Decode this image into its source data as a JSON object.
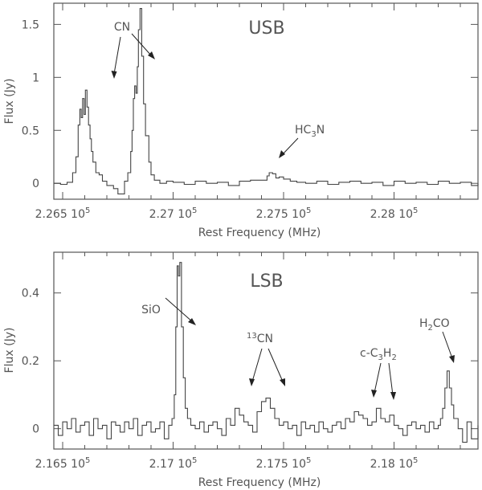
{
  "chart_data": [
    {
      "type": "line",
      "panel_label": "USB",
      "xlabel": "Rest Frequency (MHz)",
      "ylabel": "Flux (Jy)",
      "xlim": [
        226460,
        228380
      ],
      "ylim": [
        -0.15,
        1.7
      ],
      "xticks": [
        {
          "value": 226500,
          "mant": "2.265",
          "exp": "5"
        },
        {
          "value": 227000,
          "mant": "2.27",
          "exp": "5"
        },
        {
          "value": 227500,
          "mant": "2.275",
          "exp": "5"
        },
        {
          "value": 228000,
          "mant": "2.28",
          "exp": "5"
        }
      ],
      "yticks": [
        {
          "value": 0,
          "label": "0"
        },
        {
          "value": 0.5,
          "label": "0.5"
        },
        {
          "value": 1,
          "label": "1"
        },
        {
          "value": 1.5,
          "label": "1.5"
        }
      ],
      "series": [
        {
          "x": [
            226460,
            226490,
            226520,
            226545,
            226560,
            226570,
            226578,
            226584,
            226590,
            226597,
            226603,
            226610,
            226617,
            226624,
            226630,
            226637,
            226650,
            226665,
            226680,
            226700,
            226730,
            226750,
            226780,
            226795,
            226808,
            226814,
            226820,
            226826,
            226832,
            226838,
            226843,
            226850,
            226858,
            226866,
            226875,
            226890,
            226900,
            226915,
            226940,
            226970,
            227000,
            227050,
            227100,
            227150,
            227200,
            227250,
            227300,
            227350,
            227400,
            227425,
            227435,
            227450,
            227465,
            227480,
            227500,
            227530,
            227560,
            227600,
            227650,
            227700,
            227750,
            227800,
            227850,
            227900,
            227950,
            228000,
            228050,
            228100,
            228150,
            228200,
            228250,
            228300,
            228350,
            228380
          ],
          "y": [
            0.0,
            -0.01,
            0.01,
            0.1,
            0.25,
            0.55,
            0.7,
            0.62,
            0.8,
            0.65,
            0.88,
            0.72,
            0.55,
            0.42,
            0.3,
            0.2,
            0.1,
            0.08,
            0.02,
            -0.02,
            -0.05,
            -0.1,
            0.02,
            0.1,
            0.3,
            0.5,
            0.8,
            0.92,
            0.85,
            1.1,
            1.45,
            1.65,
            1.2,
            0.75,
            0.45,
            0.2,
            0.08,
            0.03,
            0.0,
            0.02,
            0.01,
            -0.01,
            0.02,
            0.0,
            0.01,
            -0.02,
            0.02,
            0.03,
            0.03,
            0.07,
            0.1,
            0.09,
            0.05,
            0.06,
            0.04,
            0.02,
            0.01,
            0.0,
            0.02,
            -0.01,
            0.01,
            0.02,
            0.0,
            0.01,
            -0.02,
            0.02,
            0.0,
            0.01,
            -0.01,
            0.02,
            0.0,
            0.01,
            -0.02,
            0.0
          ]
        }
      ],
      "annotations": [
        {
          "text": "CN"
        },
        {
          "text": "HC",
          "sub": "3",
          "rest": "N"
        }
      ]
    },
    {
      "type": "line",
      "panel_label": "LSB",
      "xlabel": "Rest Frequency (MHz)",
      "ylabel": "Flux (Jy)",
      "xlim": [
        216460,
        218380
      ],
      "ylim": [
        -0.06,
        0.52
      ],
      "xticks": [
        {
          "value": 216500,
          "mant": "2.165",
          "exp": "5"
        },
        {
          "value": 217000,
          "mant": "2.17",
          "exp": "5"
        },
        {
          "value": 217500,
          "mant": "2.175",
          "exp": "5"
        },
        {
          "value": 218000,
          "mant": "2.18",
          "exp": "5"
        }
      ],
      "yticks": [
        {
          "value": 0,
          "label": "0"
        },
        {
          "value": 0.2,
          "label": "0.2"
        },
        {
          "value": 0.4,
          "label": "0.4"
        }
      ],
      "series": [
        {
          "x": [
            216460,
            216480,
            216500,
            216520,
            216540,
            216560,
            216580,
            216600,
            216620,
            216640,
            216660,
            216680,
            216700,
            216720,
            216740,
            216760,
            216780,
            216800,
            216820,
            216840,
            216860,
            216880,
            216900,
            216920,
            216940,
            216960,
            216980,
            216995,
            217005,
            217012,
            217018,
            217024,
            217030,
            217038,
            217046,
            217055,
            217065,
            217080,
            217100,
            217120,
            217140,
            217160,
            217180,
            217200,
            217220,
            217240,
            217260,
            217280,
            217300,
            217320,
            217340,
            217360,
            217380,
            217400,
            217420,
            217440,
            217460,
            217480,
            217500,
            217520,
            217540,
            217560,
            217580,
            217600,
            217620,
            217640,
            217660,
            217680,
            217700,
            217720,
            217740,
            217760,
            217780,
            217800,
            217820,
            217840,
            217860,
            217880,
            217900,
            217920,
            217940,
            217960,
            217980,
            218000,
            218020,
            218040,
            218060,
            218080,
            218100,
            218120,
            218140,
            218160,
            218180,
            218200,
            218210,
            218220,
            218230,
            218240,
            218250,
            218260,
            218270,
            218290,
            218310,
            218330,
            218350,
            218380
          ],
          "y": [
            0.01,
            -0.02,
            0.02,
            0.0,
            0.03,
            -0.01,
            0.01,
            0.02,
            -0.02,
            0.03,
            0.0,
            0.01,
            -0.03,
            0.02,
            0.01,
            -0.01,
            0.02,
            0.0,
            0.03,
            -0.02,
            0.01,
            0.02,
            -0.01,
            0.0,
            0.02,
            -0.03,
            0.01,
            0.03,
            0.1,
            0.3,
            0.48,
            0.45,
            0.49,
            0.3,
            0.15,
            0.06,
            0.03,
            0.01,
            0.0,
            0.02,
            -0.01,
            0.01,
            0.02,
            0.0,
            -0.02,
            0.03,
            0.01,
            0.06,
            0.04,
            0.02,
            0.01,
            -0.01,
            0.05,
            0.08,
            0.09,
            0.06,
            0.03,
            0.01,
            0.02,
            0.0,
            0.01,
            -0.02,
            0.02,
            0.0,
            0.01,
            -0.01,
            0.02,
            0.0,
            -0.01,
            0.01,
            0.02,
            0.0,
            0.03,
            0.02,
            0.05,
            0.04,
            0.03,
            0.01,
            0.02,
            0.06,
            0.03,
            0.02,
            0.04,
            0.01,
            0.0,
            -0.02,
            0.01,
            0.02,
            0.0,
            0.01,
            -0.01,
            0.02,
            0.0,
            0.01,
            0.03,
            0.06,
            0.12,
            0.17,
            0.12,
            0.07,
            0.03,
            0.0,
            -0.04,
            0.02,
            -0.03,
            0.01
          ]
        }
      ],
      "annotations": [
        {
          "text": "SiO"
        },
        {
          "sup": "13",
          "text": "CN"
        },
        {
          "text": "c-C",
          "sub": "3",
          "rest": "H",
          "sub2": "2"
        },
        {
          "text": "H",
          "sub": "2",
          "rest": "CO"
        }
      ]
    }
  ]
}
